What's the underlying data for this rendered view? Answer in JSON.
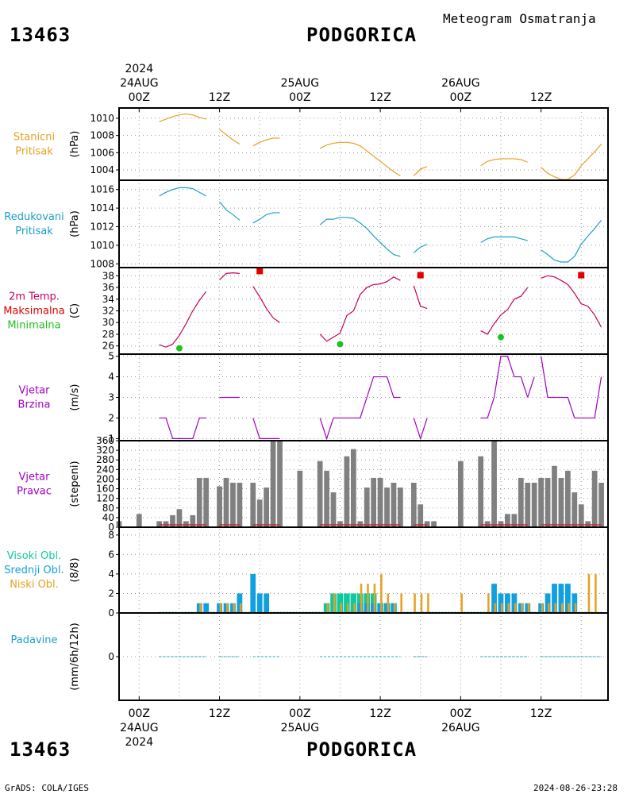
{
  "header": {
    "station_id": "13463",
    "station_name": "PODGORICA",
    "subtitle": "Meteogram Osmatranja",
    "start_year": "2024"
  },
  "footer": {
    "station_id": "13463",
    "station_name": "PODGORICA",
    "credit": "GrADS: COLA/IGES",
    "timestamp": "2024-08-26-23:28"
  },
  "time_axis": {
    "day_labels": [
      "24AUG",
      "25AUG",
      "26AUG"
    ],
    "hour_labels": [
      "00Z",
      "12Z",
      "00Z",
      "12Z",
      "00Z",
      "12Z"
    ],
    "range_hours": [
      -3,
      70
    ]
  },
  "colors": {
    "pressure": "#e6a020",
    "reduced_pressure": "#1aa0c8",
    "temp": "#c8005a",
    "max": "#e00000",
    "min": "#20c020",
    "wind": "#a000c0",
    "bars": "#808080",
    "calm": "#c03030",
    "high_cloud": "#10c8a0",
    "mid_cloud": "#10a0e0",
    "low_cloud": "#e6a020",
    "precip": "#20a0c0"
  },
  "panels": [
    {
      "id": "p1",
      "labels": [
        "Stanicni",
        "Pritisak"
      ],
      "unit": "(hPa)"
    },
    {
      "id": "p2",
      "labels": [
        "Redukovani",
        "Pritisak"
      ],
      "unit": "(hPa)"
    },
    {
      "id": "p3",
      "labels": [
        "2m Temp.",
        "Maksimalna",
        "Minimalna"
      ],
      "unit": "(C)"
    },
    {
      "id": "p4",
      "labels": [
        "Vjetar",
        "Brzina"
      ],
      "unit": "(m/s)"
    },
    {
      "id": "p5",
      "labels": [
        "Vjetar",
        "Pravac"
      ],
      "unit": "(stepeni)"
    },
    {
      "id": "p6",
      "labels": [
        "Visoki Obl.",
        "Srednji Obl.",
        "Niski Obl."
      ],
      "unit": "(8/8)"
    },
    {
      "id": "p7",
      "labels": [
        "Padavine"
      ],
      "unit": "(mm/6h/12h)"
    }
  ],
  "chart_data": [
    {
      "type": "line",
      "ylabel": "(hPa)",
      "ylim": [
        1002.8,
        1011.2
      ],
      "yticks": [
        1004,
        1006,
        1008,
        1010
      ],
      "segments": [
        {
          "x": [
            3,
            4,
            5,
            6,
            7,
            8,
            9,
            10
          ],
          "y": [
            1009.6,
            1009.9,
            1010.2,
            1010.4,
            1010.5,
            1010.4,
            1010.1,
            1009.9
          ]
        },
        {
          "x": [
            12,
            13,
            14,
            15
          ],
          "y": [
            1008.7,
            1008.1,
            1007.5,
            1007.0
          ]
        },
        {
          "x": [
            17,
            18,
            19,
            20,
            21
          ],
          "y": [
            1006.8,
            1007.2,
            1007.5,
            1007.7,
            1007.7
          ]
        },
        {
          "x": [
            27,
            28,
            29,
            30,
            31,
            32,
            33,
            34,
            35,
            36,
            37,
            38,
            39
          ],
          "y": [
            1006.5,
            1006.9,
            1007.1,
            1007.2,
            1007.2,
            1007.1,
            1006.8,
            1006.2,
            1005.6,
            1005.0,
            1004.4,
            1003.8,
            1003.3
          ]
        },
        {
          "x": [
            41,
            42,
            43
          ],
          "y": [
            1003.3,
            1004.1,
            1004.4
          ]
        },
        {
          "x": [
            51,
            52,
            53,
            54,
            55,
            56,
            57,
            58
          ],
          "y": [
            1004.5,
            1005.0,
            1005.2,
            1005.3,
            1005.3,
            1005.3,
            1005.2,
            1004.9
          ]
        },
        {
          "x": [
            60,
            61,
            62,
            63,
            64,
            65,
            66,
            67,
            68,
            69
          ],
          "y": [
            1004.3,
            1003.6,
            1003.2,
            1002.9,
            1002.9,
            1003.4,
            1004.5,
            1005.3,
            1006.1,
            1007.0
          ]
        }
      ]
    },
    {
      "type": "line",
      "ylabel": "(hPa)",
      "ylim": [
        1007.6,
        1017.0
      ],
      "yticks": [
        1008,
        1010,
        1012,
        1014,
        1016
      ],
      "segments": [
        {
          "x": [
            3,
            4,
            5,
            6,
            7,
            8,
            9,
            10
          ],
          "y": [
            1015.3,
            1015.7,
            1016.0,
            1016.2,
            1016.2,
            1016.1,
            1015.7,
            1015.3
          ]
        },
        {
          "x": [
            12,
            13,
            14,
            15
          ],
          "y": [
            1014.7,
            1013.8,
            1013.3,
            1012.7
          ]
        },
        {
          "x": [
            17,
            18,
            19,
            20,
            21
          ],
          "y": [
            1012.4,
            1012.8,
            1013.3,
            1013.5,
            1013.5
          ]
        },
        {
          "x": [
            27,
            28,
            29,
            30,
            31,
            32,
            33,
            34,
            35,
            36,
            37,
            38,
            39
          ],
          "y": [
            1012.2,
            1012.8,
            1012.8,
            1013.0,
            1013.0,
            1012.9,
            1012.4,
            1011.8,
            1011.0,
            1010.3,
            1009.6,
            1009.0,
            1008.8
          ]
        },
        {
          "x": [
            41,
            42,
            43
          ],
          "y": [
            1009.2,
            1009.8,
            1010.1
          ]
        },
        {
          "x": [
            51,
            52,
            53,
            54,
            55,
            56,
            57,
            58
          ],
          "y": [
            1010.3,
            1010.7,
            1010.9,
            1010.9,
            1010.9,
            1010.9,
            1010.7,
            1010.5
          ]
        },
        {
          "x": [
            60,
            61,
            62,
            63,
            64,
            65,
            66,
            67,
            68,
            69
          ],
          "y": [
            1009.5,
            1009.0,
            1008.4,
            1008.2,
            1008.2,
            1008.8,
            1010.1,
            1011.0,
            1011.8,
            1012.7
          ]
        }
      ]
    },
    {
      "type": "line",
      "ylabel": "(C)",
      "ylim": [
        24.6,
        39.4
      ],
      "yticks": [
        26,
        28,
        30,
        32,
        34,
        36,
        38
      ],
      "series_names": [
        "2m Temp.",
        "Maksimalna",
        "Minimalna"
      ],
      "segments": [
        {
          "x": [
            3,
            4,
            5,
            6,
            7,
            8,
            9,
            10
          ],
          "y": [
            26.2,
            25.8,
            26.3,
            27.8,
            29.8,
            32.0,
            33.8,
            35.3
          ]
        },
        {
          "x": [
            12,
            13,
            14,
            15
          ],
          "y": [
            37.3,
            38.4,
            38.5,
            38.4
          ]
        },
        {
          "x": [
            17,
            18,
            19,
            20,
            21
          ],
          "y": [
            36.2,
            34.4,
            32.4,
            30.8,
            30.0
          ]
        },
        {
          "x": [
            27,
            28,
            29,
            30,
            31,
            32,
            33,
            34,
            35,
            36,
            37,
            38,
            39
          ],
          "y": [
            28.0,
            26.8,
            27.5,
            28.2,
            31.2,
            32.0,
            34.8,
            36.0,
            36.5,
            36.6,
            37.0,
            37.8,
            37.2
          ]
        },
        {
          "x": [
            41,
            42,
            43
          ],
          "y": [
            36.3,
            32.8,
            32.4
          ]
        },
        {
          "x": [
            44
          ],
          "y": [
            31.0
          ]
        },
        {
          "x": [
            51,
            52,
            53,
            54,
            55,
            56,
            57,
            58
          ],
          "y": [
            28.6,
            28.0,
            29.8,
            31.3,
            32.2,
            34.0,
            34.5,
            36.0
          ]
        },
        {
          "x": [
            60,
            61,
            62,
            63,
            64,
            65,
            66,
            67,
            68,
            69
          ],
          "y": [
            37.6,
            38.0,
            37.8,
            37.2,
            36.5,
            35.0,
            33.2,
            32.8,
            31.3,
            29.2
          ]
        }
      ],
      "max_points": [
        {
          "x": 18,
          "y": 38.8
        },
        {
          "x": 42,
          "y": 38.1
        },
        {
          "x": 66,
          "y": 38.1
        }
      ],
      "min_points": [
        {
          "x": 6,
          "y": 25.6
        },
        {
          "x": 30,
          "y": 26.3
        },
        {
          "x": 54,
          "y": 27.5
        }
      ]
    },
    {
      "type": "line",
      "ylabel": "(m/s)",
      "ylim": [
        0.9,
        5.1
      ],
      "yticks": [
        1,
        2,
        3,
        4,
        5
      ],
      "segments": [
        {
          "x": [
            3,
            4,
            5,
            6,
            7,
            8,
            9,
            10
          ],
          "y": [
            2,
            2,
            1,
            1,
            1,
            1,
            2,
            2
          ]
        },
        {
          "x": [
            12,
            13,
            14,
            15
          ],
          "y": [
            3,
            3,
            3,
            3
          ]
        },
        {
          "x": [
            17,
            18,
            19,
            20,
            21
          ],
          "y": [
            2,
            1,
            1,
            1,
            1
          ]
        },
        {
          "x": [
            27,
            28,
            29,
            30,
            31,
            32,
            33,
            34,
            35,
            36,
            37,
            38,
            39
          ],
          "y": [
            2,
            1,
            2,
            2,
            2,
            2,
            2,
            3,
            4,
            4,
            4,
            3,
            3
          ]
        },
        {
          "x": [
            41,
            42,
            43
          ],
          "y": [
            2,
            1,
            2
          ]
        },
        {
          "x": [
            51,
            52,
            53,
            54,
            55,
            56,
            57,
            58
          ],
          "y": [
            2,
            2,
            3,
            5,
            5,
            4,
            4,
            3
          ]
        },
        {
          "x": [
            58,
            59
          ],
          "y": [
            3,
            4
          ]
        },
        {
          "x": [
            60,
            61,
            62,
            63,
            64,
            65,
            66,
            67,
            68,
            69
          ],
          "y": [
            5,
            3,
            3,
            3,
            3,
            2,
            2,
            2,
            2,
            4
          ]
        }
      ]
    },
    {
      "type": "bar",
      "ylabel": "(stepeni)",
      "ylim": [
        0,
        360
      ],
      "yticks": [
        0,
        40,
        80,
        120,
        160,
        200,
        240,
        280,
        320,
        360
      ],
      "x": [
        -3,
        0,
        3,
        4,
        5,
        6,
        7,
        8,
        9,
        10,
        12,
        13,
        14,
        15,
        17,
        18,
        19,
        20,
        21,
        24,
        27,
        28,
        29,
        30,
        31,
        32,
        33,
        34,
        35,
        36,
        37,
        38,
        39,
        41,
        42,
        43,
        44,
        48,
        51,
        52,
        53,
        54,
        55,
        56,
        57,
        58,
        59,
        60,
        61,
        62,
        63,
        64,
        65,
        66,
        67,
        68,
        69
      ],
      "values": [
        25,
        55,
        25,
        25,
        50,
        75,
        25,
        50,
        205,
        205,
        170,
        205,
        185,
        185,
        185,
        115,
        165,
        360,
        360,
        235,
        275,
        235,
        145,
        25,
        295,
        325,
        25,
        165,
        205,
        205,
        165,
        185,
        165,
        185,
        95,
        25,
        25,
        275,
        295,
        25,
        365,
        25,
        55,
        55,
        205,
        185,
        185,
        205,
        205,
        255,
        205,
        235,
        145,
        95,
        25,
        235,
        185
      ],
      "calm_segments": [
        [
          3,
          10
        ],
        [
          12,
          15
        ],
        [
          17,
          21
        ],
        [
          27,
          39
        ],
        [
          41,
          43
        ],
        [
          51,
          58
        ],
        [
          60,
          69
        ]
      ]
    },
    {
      "type": "bar",
      "ylabel": "(8/8)",
      "ylim": [
        0,
        8.8
      ],
      "yticks": [
        0,
        2,
        4,
        6,
        8
      ],
      "series": [
        {
          "name": "Visoki Obl.",
          "x": [
            28,
            29,
            30,
            31,
            32,
            33,
            34,
            35,
            36,
            37,
            38
          ],
          "values": [
            1,
            2,
            2,
            2,
            2,
            2,
            2,
            2,
            1,
            1,
            1
          ]
        },
        {
          "name": "Srednji Obl.",
          "x": [
            9,
            10,
            12,
            13,
            14,
            15,
            17,
            18,
            19,
            33,
            34,
            35,
            36,
            37,
            38,
            53,
            54,
            55,
            56,
            57,
            58,
            60,
            61,
            62,
            63,
            64,
            65
          ],
          "values": [
            1,
            1,
            1,
            1,
            1,
            2,
            4,
            2,
            2,
            1,
            1,
            1,
            1,
            1,
            1,
            3,
            2,
            2,
            2,
            1,
            1,
            1,
            2,
            3,
            3,
            3,
            2
          ]
        },
        {
          "name": "Niski Obl.",
          "x": [
            9,
            12,
            13,
            14,
            15,
            28,
            29,
            30,
            31,
            32,
            33,
            34,
            35,
            36,
            37,
            38,
            39,
            41,
            42,
            43,
            48,
            52,
            53,
            54,
            55,
            56,
            57,
            58,
            60,
            61,
            62,
            63,
            64,
            65,
            67,
            68
          ],
          "values": [
            1,
            1,
            1,
            1,
            1,
            1,
            2,
            1,
            1,
            1,
            3,
            3,
            3,
            4,
            2,
            1,
            2,
            2,
            2,
            2,
            2,
            2,
            1,
            1,
            1,
            1,
            1,
            1,
            1,
            1,
            1,
            1,
            1,
            1,
            4,
            4
          ]
        }
      ]
    },
    {
      "type": "line",
      "ylabel": "(mm/6h/12h)",
      "ylim": [
        -4,
        4
      ],
      "yticks": [
        0
      ],
      "segments": [
        {
          "x": [
            3,
            10
          ],
          "y": [
            0,
            0
          ]
        },
        {
          "x": [
            12,
            15
          ],
          "y": [
            0,
            0
          ]
        },
        {
          "x": [
            17,
            21
          ],
          "y": [
            0,
            0
          ]
        },
        {
          "x": [
            27,
            39
          ],
          "y": [
            0,
            0
          ]
        },
        {
          "x": [
            41,
            43
          ],
          "y": [
            0,
            0
          ]
        },
        {
          "x": [
            51,
            58
          ],
          "y": [
            0,
            0
          ]
        },
        {
          "x": [
            60,
            69
          ],
          "y": [
            0,
            0
          ]
        }
      ]
    }
  ]
}
